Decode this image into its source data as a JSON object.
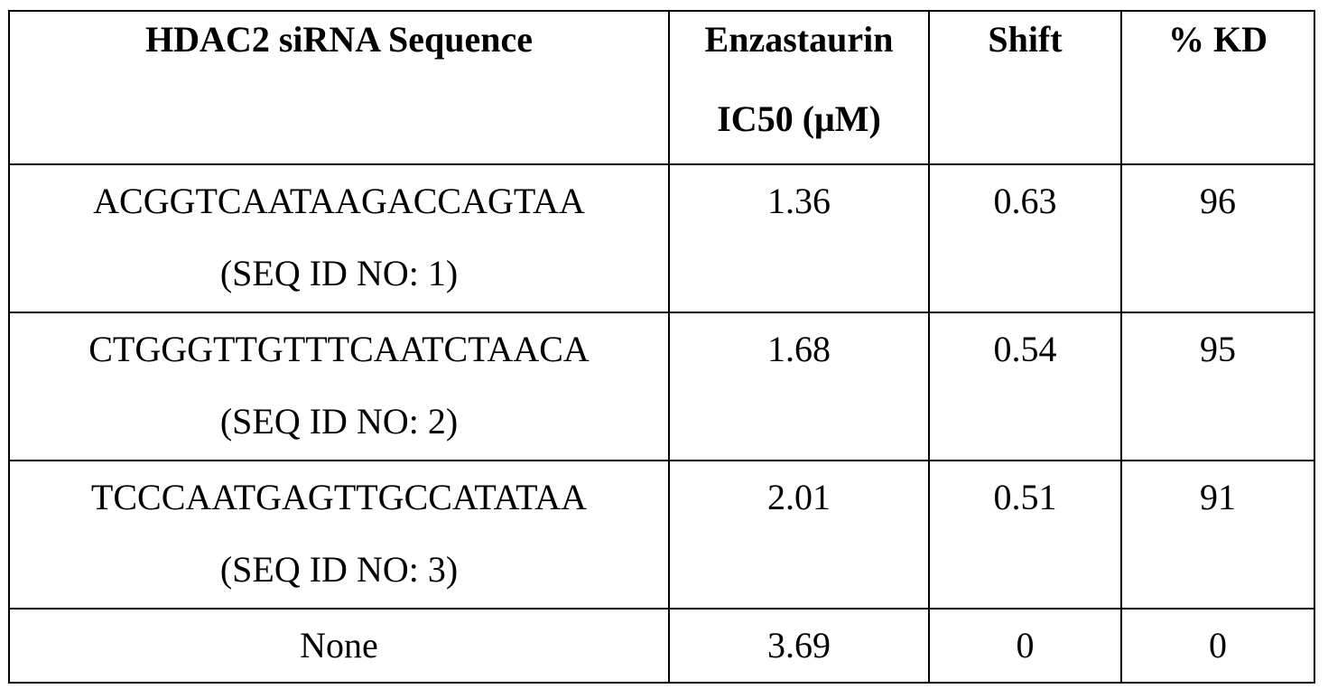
{
  "table": {
    "headers": {
      "sequence": "HDAC2 siRNA Sequence",
      "ic50_line1": "Enzastaurin",
      "ic50_line2": "IC50 (μM)",
      "shift": "Shift",
      "kd": "% KD"
    },
    "rows": [
      {
        "sequence": "ACGGTCAATAAGACCAGTAA",
        "seq_id": "(SEQ ID NO: 1)",
        "ic50": "1.36",
        "shift": "0.63",
        "kd": "96"
      },
      {
        "sequence": "CTGGGTTGTTTCAATCTAACA",
        "seq_id": "(SEQ ID NO: 2)",
        "ic50": "1.68",
        "shift": "0.54",
        "kd": "95"
      },
      {
        "sequence": "TCCCAATGAGTTGCCATATAA",
        "seq_id": "(SEQ ID NO: 3)",
        "ic50": "2.01",
        "shift": "0.51",
        "kd": "91"
      },
      {
        "sequence": "None",
        "ic50": "3.69",
        "shift": "0",
        "kd": "0"
      }
    ]
  }
}
